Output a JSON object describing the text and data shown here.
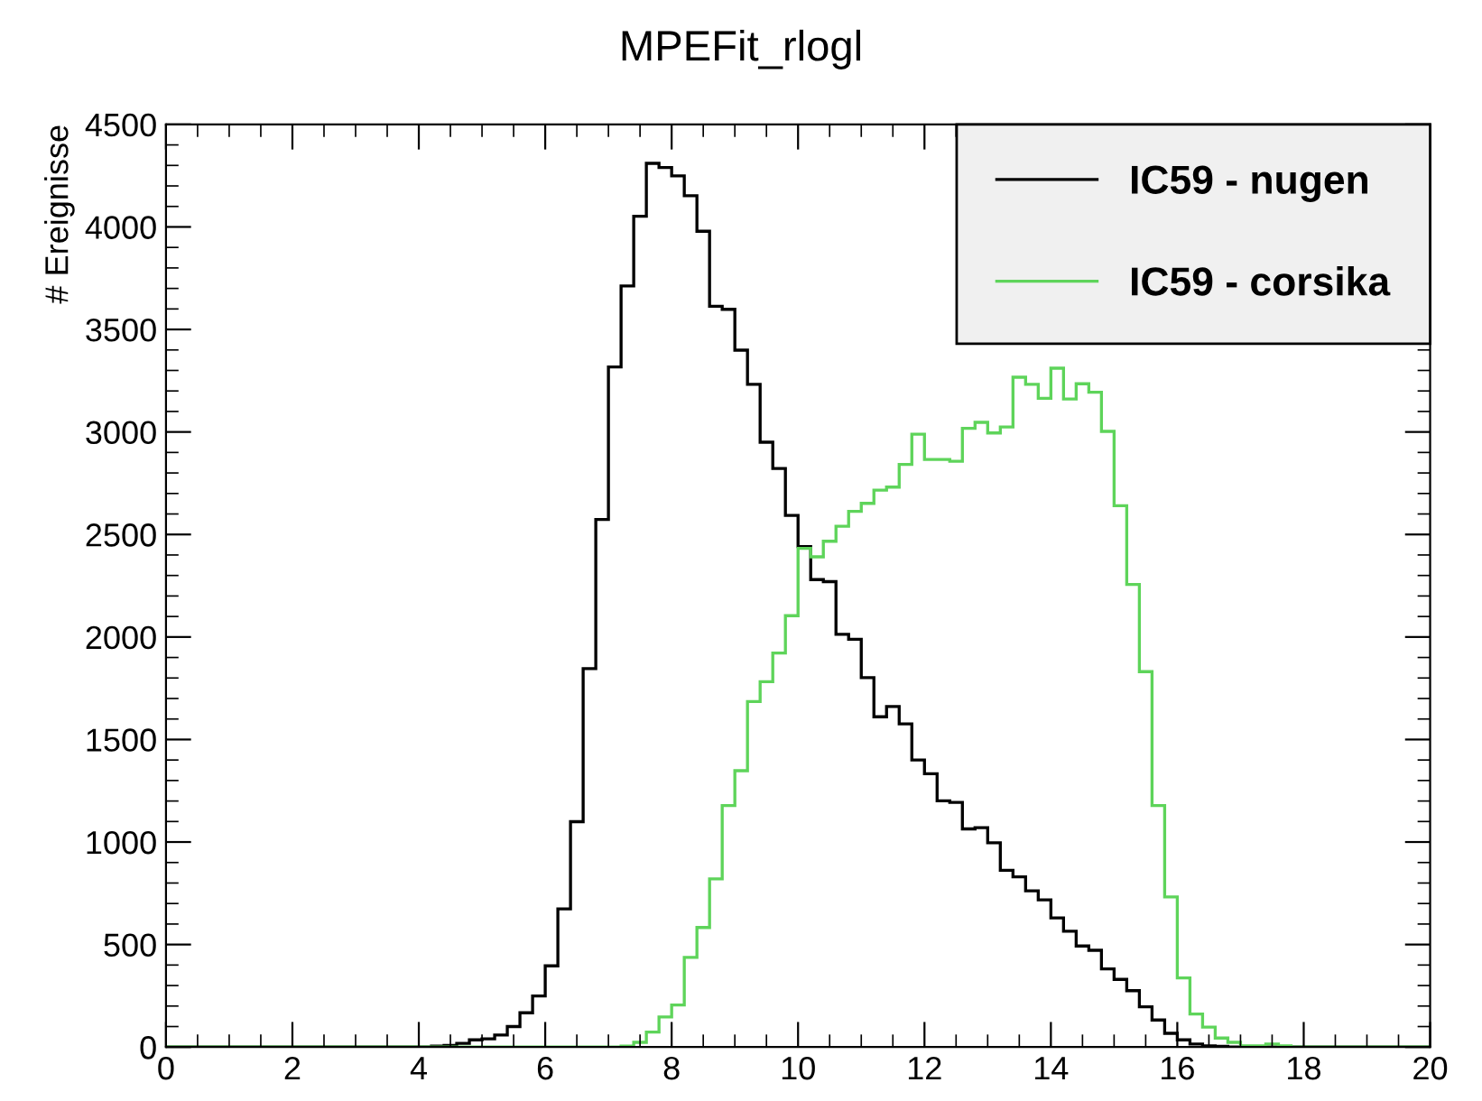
{
  "chart_data": {
    "type": "histogram",
    "title": "MPEFit_rlogl",
    "ylabel": "# Ereignisse",
    "bins": [
      0,
      0.2,
      0.4,
      0.6,
      0.8,
      1,
      1.2,
      1.4,
      1.6,
      1.8,
      2,
      2.2,
      2.4,
      2.6,
      2.8,
      3,
      3.2,
      3.4,
      3.6,
      3.8,
      4,
      4.2,
      4.4,
      4.6,
      4.8,
      5,
      5.2,
      5.4,
      5.6,
      5.8,
      6,
      6.2,
      6.4,
      6.6,
      6.8,
      7,
      7.2,
      7.4,
      7.6,
      7.8,
      8,
      8.2,
      8.4,
      8.6,
      8.8,
      9,
      9.2,
      9.4,
      9.6,
      9.8,
      10,
      10.2,
      10.4,
      10.6,
      10.8,
      11,
      11.2,
      11.4,
      11.6,
      11.8,
      12,
      12.2,
      12.4,
      12.6,
      12.8,
      13,
      13.2,
      13.4,
      13.6,
      13.8,
      14,
      14.2,
      14.4,
      14.6,
      14.8,
      15,
      15.2,
      15.4,
      15.6,
      15.8,
      16,
      16.2,
      16.4,
      16.6,
      16.8,
      17,
      17.2,
      17.4,
      17.6,
      17.8,
      18,
      18.2,
      18.4,
      18.6,
      18.8,
      19,
      19.2,
      19.4,
      19.6,
      19.8,
      20
    ],
    "series": [
      {
        "name": "IC59 - nugen",
        "color": "#000000",
        "values": [
          0,
          0,
          0,
          0,
          0,
          0,
          0,
          0,
          0,
          0,
          0,
          0,
          0,
          0,
          0,
          0,
          0,
          0,
          0,
          0,
          0,
          5,
          8,
          18,
          35,
          40,
          59,
          100,
          167,
          249,
          396,
          674,
          1099,
          1846,
          2573,
          3317,
          3712,
          4052,
          4310,
          4290,
          4249,
          4152,
          3979,
          3613,
          3598,
          3399,
          3232,
          2950,
          2822,
          2593,
          2441,
          2280,
          2270,
          2013,
          1989,
          1802,
          1611,
          1661,
          1576,
          1400,
          1333,
          1201,
          1193,
          1064,
          1070,
          996,
          862,
          830,
          762,
          718,
          630,
          565,
          493,
          472,
          381,
          330,
          275,
          196,
          132,
          67,
          35,
          15,
          6,
          3,
          0,
          0,
          0,
          0,
          0,
          0,
          0,
          0,
          0,
          0,
          0,
          0,
          0,
          0,
          0,
          0
        ]
      },
      {
        "name": "IC59 - corsika",
        "color": "#5ed45a",
        "values": [
          0,
          0,
          0,
          0,
          0,
          0,
          0,
          0,
          0,
          0,
          0,
          0,
          0,
          0,
          0,
          0,
          0,
          0,
          0,
          0,
          0,
          0,
          0,
          0,
          0,
          0,
          0,
          0,
          0,
          0,
          0,
          0,
          0,
          0,
          0,
          0,
          5,
          23,
          73,
          147,
          205,
          437,
          583,
          820,
          1178,
          1348,
          1685,
          1782,
          1922,
          2104,
          2432,
          2391,
          2467,
          2540,
          2613,
          2652,
          2716,
          2731,
          2842,
          2989,
          2866,
          2866,
          2857,
          3018,
          3047,
          2995,
          3024,
          3267,
          3232,
          3164,
          3311,
          3161,
          3235,
          3194,
          3003,
          2640,
          2256,
          1831,
          1178,
          732,
          337,
          161,
          97,
          44,
          23,
          6,
          6,
          15,
          6,
          0,
          0,
          0,
          0,
          0,
          0,
          0,
          0,
          0,
          0,
          0
        ]
      }
    ],
    "xlim": [
      0,
      20
    ],
    "xticks": [
      0,
      2,
      4,
      6,
      8,
      10,
      12,
      14,
      16,
      18,
      20
    ],
    "ylim": [
      0,
      4500
    ],
    "yticks": [
      0,
      500,
      1000,
      1500,
      2000,
      2500,
      3000,
      3500,
      4000,
      4500
    ],
    "legend": "top right",
    "grid": false
  }
}
